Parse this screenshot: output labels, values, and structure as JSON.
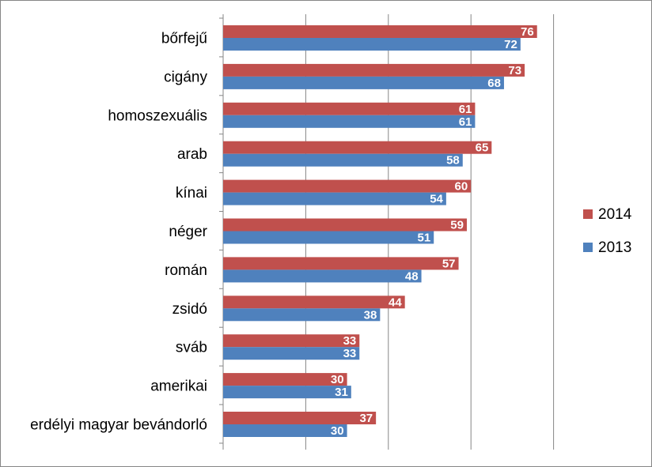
{
  "chart_data": {
    "type": "bar",
    "orientation": "horizontal",
    "categories": [
      "bőrfejű",
      "cigány",
      "homoszexuális",
      "arab",
      "kínai",
      "néger",
      "román",
      "zsidó",
      "sváb",
      "amerikai",
      "erdélyi magyar bevándorló"
    ],
    "series": [
      {
        "name": "2014",
        "color": "#C0504D",
        "values": [
          76,
          73,
          61,
          65,
          60,
          59,
          57,
          44,
          33,
          30,
          37
        ]
      },
      {
        "name": "2013",
        "color": "#4F81BD",
        "values": [
          72,
          68,
          61,
          58,
          54,
          51,
          48,
          38,
          33,
          31,
          30
        ]
      }
    ],
    "xlim": [
      0,
      100
    ],
    "grid": true,
    "legend": "right",
    "data_labels": true
  }
}
